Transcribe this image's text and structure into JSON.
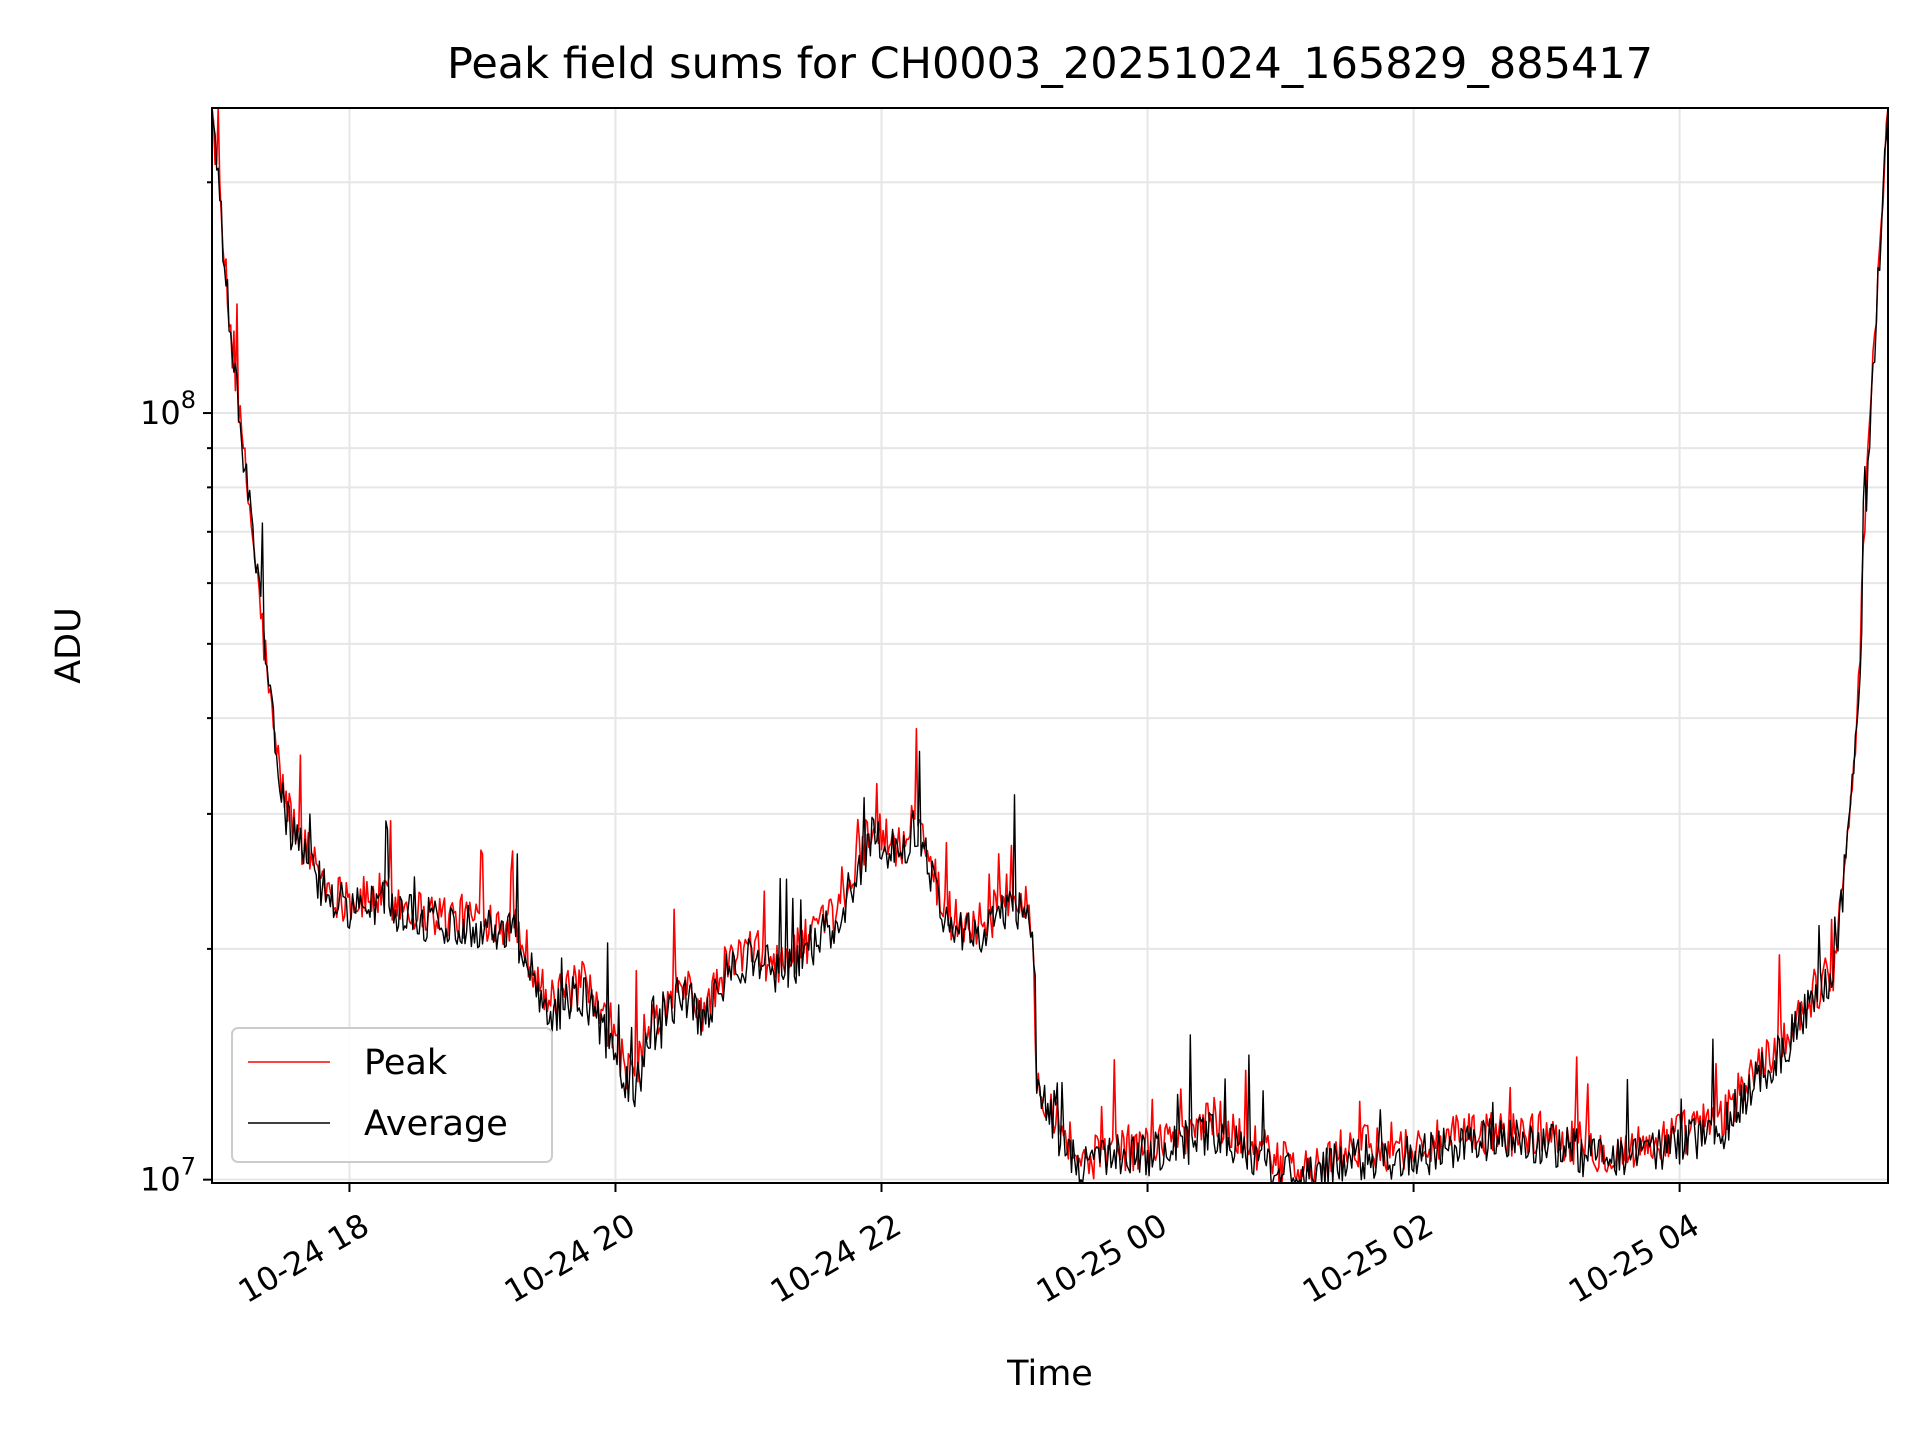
{
  "chart_data": {
    "type": "line",
    "title": "Peak field sums for CH0003_20251024_165829_885417",
    "xlabel": "Time",
    "ylabel": "ADU",
    "yscale": "log",
    "ylim": [
      9900000,
      250000000
    ],
    "xlim": [
      "2025-10-24 16:58",
      "2025-10-25 05:34"
    ],
    "x_ticks": [
      {
        "t": "2025-10-24 18:00",
        "label": "10-24 18"
      },
      {
        "t": "2025-10-24 20:00",
        "label": "10-24 20"
      },
      {
        "t": "2025-10-24 22:00",
        "label": "10-24 22"
      },
      {
        "t": "2025-10-25 00:00",
        "label": "10-25 00"
      },
      {
        "t": "2025-10-25 02:00",
        "label": "10-25 02"
      },
      {
        "t": "2025-10-25 04:00",
        "label": "10-25 04"
      }
    ],
    "y_ticks": [
      {
        "value": 10000000,
        "base": "10",
        "exp": "7"
      },
      {
        "value": 100000000,
        "base": "10",
        "exp": "8"
      }
    ],
    "grid": true,
    "legend_position": "lower-left",
    "series": [
      {
        "name": "Peak",
        "color": "#ff0000",
        "x": [
          "2025-10-24 16:58",
          "2025-10-24 17:05",
          "2025-10-24 17:10",
          "2025-10-24 17:15",
          "2025-10-24 17:20",
          "2025-10-24 17:25",
          "2025-10-24 17:30",
          "2025-10-24 17:35",
          "2025-10-24 17:40",
          "2025-10-24 17:45",
          "2025-10-24 17:50",
          "2025-10-24 18:00",
          "2025-10-24 18:15",
          "2025-10-24 18:30",
          "2025-10-24 18:45",
          "2025-10-24 19:00",
          "2025-10-24 19:15",
          "2025-10-24 19:30",
          "2025-10-24 19:45",
          "2025-10-24 19:50",
          "2025-10-24 20:00",
          "2025-10-24 20:08",
          "2025-10-24 20:15",
          "2025-10-24 20:30",
          "2025-10-24 20:40",
          "2025-10-24 20:50",
          "2025-10-24 21:00",
          "2025-10-24 21:15",
          "2025-10-24 21:30",
          "2025-10-24 21:40",
          "2025-10-24 21:55",
          "2025-10-24 22:00",
          "2025-10-24 22:10",
          "2025-10-24 22:15",
          "2025-10-24 22:30",
          "2025-10-24 22:45",
          "2025-10-24 23:00",
          "2025-10-24 23:08",
          "2025-10-24 23:10",
          "2025-10-24 23:20",
          "2025-10-24 23:30",
          "2025-10-24 23:45",
          "2025-10-25 00:00",
          "2025-10-25 00:30",
          "2025-10-25 01:00",
          "2025-10-25 01:15",
          "2025-10-25 01:30",
          "2025-10-25 02:00",
          "2025-10-25 02:30",
          "2025-10-25 03:00",
          "2025-10-25 03:30",
          "2025-10-25 03:50",
          "2025-10-25 04:00",
          "2025-10-25 04:20",
          "2025-10-25 04:30",
          "2025-10-25 04:45",
          "2025-10-25 05:00",
          "2025-10-25 05:10",
          "2025-10-25 05:20",
          "2025-10-25 05:25",
          "2025-10-25 05:34"
        ],
        "y": [
          250000000,
          140000000,
          100000000,
          75000000,
          55000000,
          40000000,
          32000000,
          29000000,
          27000000,
          26000000,
          24000000,
          23000000,
          23500000,
          22500000,
          22000000,
          22000000,
          21500000,
          17000000,
          18000000,
          17000000,
          15000000,
          13500000,
          15500000,
          18000000,
          16500000,
          19000000,
          20000000,
          19000000,
          21000000,
          22000000,
          29000000,
          28000000,
          27000000,
          30000000,
          22000000,
          21500000,
          23500000,
          22000000,
          13500000,
          12000000,
          10500000,
          11000000,
          11000000,
          12000000,
          10500000,
          10200000,
          11000000,
          11000000,
          11500000,
          11500000,
          10800000,
          11200000,
          11500000,
          12000000,
          13500000,
          15000000,
          17500000,
          19000000,
          40000000,
          90000000,
          250000000
        ]
      },
      {
        "name": "Average",
        "color": "#000000",
        "x": [
          "2025-10-24 16:58",
          "2025-10-24 17:05",
          "2025-10-24 17:10",
          "2025-10-24 17:15",
          "2025-10-24 17:20",
          "2025-10-24 17:25",
          "2025-10-24 17:30",
          "2025-10-24 17:35",
          "2025-10-24 17:40",
          "2025-10-24 17:45",
          "2025-10-24 17:50",
          "2025-10-24 18:00",
          "2025-10-24 18:15",
          "2025-10-24 18:30",
          "2025-10-24 18:45",
          "2025-10-24 19:00",
          "2025-10-24 19:15",
          "2025-10-24 19:30",
          "2025-10-24 19:45",
          "2025-10-24 19:50",
          "2025-10-24 20:00",
          "2025-10-24 20:08",
          "2025-10-24 20:15",
          "2025-10-24 20:30",
          "2025-10-24 20:40",
          "2025-10-24 20:50",
          "2025-10-24 21:00",
          "2025-10-24 21:15",
          "2025-10-24 21:30",
          "2025-10-24 21:40",
          "2025-10-24 21:55",
          "2025-10-24 22:00",
          "2025-10-24 22:10",
          "2025-10-24 22:15",
          "2025-10-24 22:30",
          "2025-10-24 22:45",
          "2025-10-24 23:00",
          "2025-10-24 23:08",
          "2025-10-24 23:10",
          "2025-10-24 23:20",
          "2025-10-24 23:30",
          "2025-10-24 23:45",
          "2025-10-25 00:00",
          "2025-10-25 00:30",
          "2025-10-25 01:00",
          "2025-10-25 01:15",
          "2025-10-25 01:30",
          "2025-10-25 02:00",
          "2025-10-25 02:30",
          "2025-10-25 03:00",
          "2025-10-25 03:30",
          "2025-10-25 03:50",
          "2025-10-25 04:00",
          "2025-10-25 04:20",
          "2025-10-25 04:30",
          "2025-10-25 04:45",
          "2025-10-25 05:00",
          "2025-10-25 05:10",
          "2025-10-25 05:20",
          "2025-10-25 05:25",
          "2025-10-25 05:34"
        ],
        "y": [
          250000000,
          140000000,
          100000000,
          75000000,
          55000000,
          40000000,
          31000000,
          28000000,
          26000000,
          25000000,
          23500000,
          22500000,
          23000000,
          22000000,
          21500000,
          21500000,
          21000000,
          16500000,
          17500000,
          16500000,
          14500000,
          13000000,
          15000000,
          17500000,
          16000000,
          18500000,
          19500000,
          18500000,
          20500000,
          21500000,
          28000000,
          27500000,
          26500000,
          29000000,
          21500000,
          21000000,
          23000000,
          21500000,
          13000000,
          11500000,
          10200000,
          10700000,
          10700000,
          11500000,
          10200000,
          10000000,
          10700000,
          10700000,
          11200000,
          11200000,
          10500000,
          10900000,
          11200000,
          11700000,
          13000000,
          14500000,
          17000000,
          18500000,
          38000000,
          88000000,
          250000000
        ]
      }
    ]
  }
}
